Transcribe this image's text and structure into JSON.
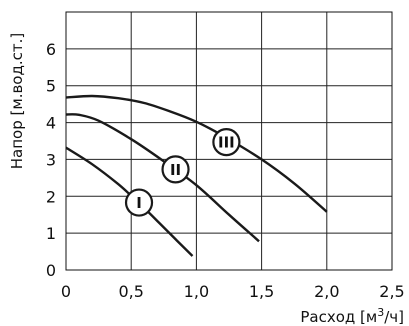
{
  "chart_data": {
    "type": "line",
    "xlabel_text": "Расход [м",
    "xlabel_sup": "3",
    "xlabel_end": "/ч]",
    "ylabel": "Напор [м.вод.ст.]",
    "xlim": [
      0,
      2.5
    ],
    "ylim": [
      0,
      7
    ],
    "x_ticks": [
      0,
      0.5,
      1.0,
      1.5,
      2.0,
      2.5
    ],
    "x_tick_labels": [
      "0",
      "0,5",
      "1,0",
      "1,5",
      "2,0",
      "2,5"
    ],
    "y_ticks": [
      0,
      1,
      2,
      3,
      4,
      5,
      6
    ],
    "y_tick_labels": [
      "0",
      "1",
      "2",
      "3",
      "4",
      "5",
      "6"
    ],
    "grid": true,
    "line_color": "#1a1a1a",
    "series": [
      {
        "name": "I",
        "x": [
          0,
          0.2,
          0.4,
          0.55,
          0.7,
          0.85,
          0.97
        ],
        "y": [
          3.32,
          2.87,
          2.33,
          1.85,
          1.33,
          0.8,
          0.38
        ]
      },
      {
        "name": "II",
        "x": [
          0,
          0.1,
          0.25,
          0.5,
          0.75,
          1.0,
          1.25,
          1.48
        ],
        "y": [
          4.22,
          4.21,
          4.05,
          3.55,
          2.95,
          2.3,
          1.5,
          0.78
        ]
      },
      {
        "name": "III",
        "x": [
          0,
          0.2,
          0.4,
          0.6,
          0.8,
          1.0,
          1.2,
          1.5,
          1.75,
          2.0
        ],
        "y": [
          4.68,
          4.72,
          4.66,
          4.53,
          4.3,
          4.02,
          3.65,
          3.0,
          2.35,
          1.58
        ]
      }
    ],
    "curve_labels": [
      {
        "series": "I",
        "text": "I",
        "x": 0.56,
        "y": 1.83
      },
      {
        "series": "II",
        "text": "II",
        "x": 0.84,
        "y": 2.73
      },
      {
        "series": "III",
        "text": "III",
        "x": 1.23,
        "y": 3.47
      }
    ]
  }
}
